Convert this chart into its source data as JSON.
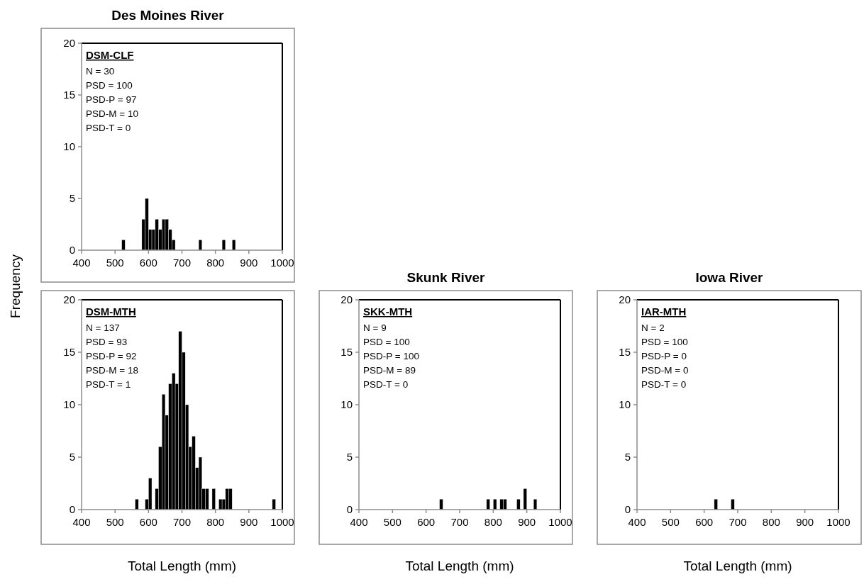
{
  "chart_data": [
    {
      "type": "histogram",
      "title": "Des Moines River",
      "color": "#000000",
      "xlim": [
        400,
        1000
      ],
      "ylim": [
        0,
        20
      ],
      "xticks": [
        400,
        500,
        600,
        700,
        800,
        900,
        1000
      ],
      "yticks": [
        0,
        5,
        10,
        15,
        20
      ],
      "bins": [
        400,
        410,
        420,
        430,
        440,
        450,
        460,
        470,
        480,
        490,
        500,
        510,
        520,
        530,
        540,
        550,
        560,
        570,
        580,
        590,
        600,
        610,
        620,
        630,
        640,
        650,
        660,
        670,
        680,
        690,
        700,
        710,
        720,
        730,
        740,
        750,
        760,
        770,
        780,
        790,
        800,
        810,
        820,
        830,
        840,
        850,
        860,
        870,
        880,
        890,
        900,
        910,
        920,
        930,
        940,
        950,
        960,
        970,
        980,
        990,
        1000
      ],
      "values": [
        0,
        0,
        0,
        0,
        0,
        0,
        0,
        0,
        0,
        0,
        0,
        0,
        1,
        0,
        0,
        0,
        0,
        0,
        3,
        5,
        2,
        2,
        3,
        2,
        3,
        3,
        2,
        1,
        0,
        0,
        0,
        0,
        0,
        0,
        0,
        1,
        0,
        0,
        0,
        0,
        0,
        0,
        1,
        0,
        0,
        1,
        0,
        0,
        0,
        0,
        0,
        0,
        0,
        0,
        0,
        0,
        0,
        0,
        0,
        0
      ],
      "annotations": [
        "DSM-CLF",
        "N = 30",
        "PSD = 100",
        "PSD-P = 97",
        "PSD-M = 10",
        "PSD-T = 0"
      ]
    },
    {
      "type": "histogram",
      "xlabel": "Total Length (mm)",
      "ylabel": "Frequency",
      "color": "#000000",
      "xlim": [
        400,
        1000
      ],
      "ylim": [
        0,
        20
      ],
      "xticks": [
        400,
        500,
        600,
        700,
        800,
        900,
        1000
      ],
      "yticks": [
        0,
        5,
        10,
        15,
        20
      ],
      "bins": [
        400,
        410,
        420,
        430,
        440,
        450,
        460,
        470,
        480,
        490,
        500,
        510,
        520,
        530,
        540,
        550,
        560,
        570,
        580,
        590,
        600,
        610,
        620,
        630,
        640,
        650,
        660,
        670,
        680,
        690,
        700,
        710,
        720,
        730,
        740,
        750,
        760,
        770,
        780,
        790,
        800,
        810,
        820,
        830,
        840,
        850,
        860,
        870,
        880,
        890,
        900,
        910,
        920,
        930,
        940,
        950,
        960,
        970,
        980,
        990,
        1000
      ],
      "values": [
        0,
        0,
        0,
        0,
        0,
        0,
        0,
        0,
        0,
        0,
        0,
        0,
        0,
        0,
        0,
        0,
        1,
        0,
        0,
        1,
        3,
        0,
        2,
        6,
        11,
        9,
        12,
        13,
        12,
        17,
        15,
        10,
        6,
        7,
        4,
        5,
        2,
        2,
        0,
        2,
        0,
        1,
        1,
        2,
        2,
        0,
        0,
        0,
        0,
        0,
        0,
        0,
        0,
        0,
        0,
        0,
        0,
        1,
        0,
        0
      ],
      "annotations": [
        "DSM-MTH",
        "N = 137",
        "PSD = 93",
        "PSD-P = 92",
        "PSD-M = 18",
        "PSD-T = 1"
      ]
    },
    {
      "type": "histogram",
      "title": "Skunk River",
      "xlabel": "Total Length (mm)",
      "color": "#000000",
      "xlim": [
        400,
        1000
      ],
      "ylim": [
        0,
        20
      ],
      "xticks": [
        400,
        500,
        600,
        700,
        800,
        900,
        1000
      ],
      "yticks": [
        0,
        5,
        10,
        15,
        20
      ],
      "bins": [
        400,
        410,
        420,
        430,
        440,
        450,
        460,
        470,
        480,
        490,
        500,
        510,
        520,
        530,
        540,
        550,
        560,
        570,
        580,
        590,
        600,
        610,
        620,
        630,
        640,
        650,
        660,
        670,
        680,
        690,
        700,
        710,
        720,
        730,
        740,
        750,
        760,
        770,
        780,
        790,
        800,
        810,
        820,
        830,
        840,
        850,
        860,
        870,
        880,
        890,
        900,
        910,
        920,
        930,
        940,
        950,
        960,
        970,
        980,
        990,
        1000
      ],
      "values": [
        0,
        0,
        0,
        0,
        0,
        0,
        0,
        0,
        0,
        0,
        0,
        0,
        0,
        0,
        0,
        0,
        0,
        0,
        0,
        0,
        0,
        0,
        0,
        0,
        1,
        0,
        0,
        0,
        0,
        0,
        0,
        0,
        0,
        0,
        0,
        0,
        0,
        0,
        1,
        0,
        1,
        0,
        1,
        1,
        0,
        0,
        0,
        1,
        0,
        2,
        0,
        0,
        1,
        0,
        0,
        0,
        0,
        0,
        0,
        0
      ],
      "annotations": [
        "SKK-MTH",
        "N = 9",
        "PSD = 100",
        "PSD-P = 100",
        "PSD-M = 89",
        "PSD-T = 0"
      ]
    },
    {
      "type": "histogram",
      "title": "Iowa River",
      "xlabel": "Total Length (mm)",
      "color": "#000000",
      "xlim": [
        400,
        1000
      ],
      "ylim": [
        0,
        20
      ],
      "xticks": [
        400,
        500,
        600,
        700,
        800,
        900,
        1000
      ],
      "yticks": [
        0,
        5,
        10,
        15,
        20
      ],
      "bins": [
        400,
        410,
        420,
        430,
        440,
        450,
        460,
        470,
        480,
        490,
        500,
        510,
        520,
        530,
        540,
        550,
        560,
        570,
        580,
        590,
        600,
        610,
        620,
        630,
        640,
        650,
        660,
        670,
        680,
        690,
        700,
        710,
        720,
        730,
        740,
        750,
        760,
        770,
        780,
        790,
        800,
        810,
        820,
        830,
        840,
        850,
        860,
        870,
        880,
        890,
        900,
        910,
        920,
        930,
        940,
        950,
        960,
        970,
        980,
        990,
        1000
      ],
      "values": [
        0,
        0,
        0,
        0,
        0,
        0,
        0,
        0,
        0,
        0,
        0,
        0,
        0,
        0,
        0,
        0,
        0,
        0,
        0,
        0,
        0,
        0,
        0,
        1,
        0,
        0,
        0,
        0,
        1,
        0,
        0,
        0,
        0,
        0,
        0,
        0,
        0,
        0,
        0,
        0,
        0,
        0,
        0,
        0,
        0,
        0,
        0,
        0,
        0,
        0,
        0,
        0,
        0,
        0,
        0,
        0,
        0,
        0,
        0,
        0
      ],
      "annotations": [
        "IAR-MTH",
        "N = 2",
        "PSD = 100",
        "PSD-P = 0",
        "PSD-M = 0",
        "PSD-T = 0"
      ]
    }
  ]
}
